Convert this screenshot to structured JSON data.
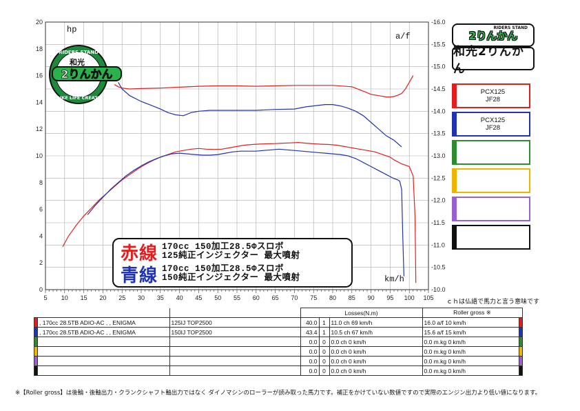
{
  "chart_data": {
    "type": "line",
    "x_axis": {
      "label": "km/h",
      "range": [
        5,
        105
      ],
      "ticks": [
        5,
        10,
        15,
        20,
        25,
        30,
        35,
        40,
        45,
        50,
        55,
        60,
        65,
        70,
        75,
        80,
        85,
        90,
        95,
        100,
        105
      ]
    },
    "y_left": {
      "label": "hp",
      "range": [
        0,
        20
      ],
      "ticks": [
        0,
        2,
        4,
        6,
        8,
        10,
        12,
        14,
        16,
        18,
        20
      ]
    },
    "y_right": {
      "label": "a/f",
      "range": [
        10.0,
        16.0
      ],
      "ticks": [
        "10.0",
        "10.5",
        "11.0",
        "11.5",
        "12.0",
        "12.5",
        "13.0",
        "13.5",
        "14.0",
        "14.5",
        "15.0",
        "15.5",
        "16.0"
      ]
    },
    "grid": true,
    "series": [
      {
        "name": "170cc 150加工28.5Φスロボ 125純正インジェクター 最大噴射",
        "color": "#e41e1e",
        "kind": "power",
        "x": [
          9.5,
          11,
          13,
          15,
          17,
          19,
          21,
          23,
          25,
          27,
          29,
          31,
          33,
          35,
          37,
          39,
          41,
          43,
          45,
          47,
          49,
          51,
          53,
          55,
          57,
          59,
          61,
          63,
          65,
          67,
          69,
          71,
          73,
          75,
          77,
          79,
          81,
          83,
          85,
          87,
          89,
          91,
          93,
          95,
          96,
          97,
          98,
          99,
          100,
          101,
          101.5,
          101.7
        ],
        "y": [
          3.2,
          4.0,
          4.8,
          5.5,
          6.1,
          6.7,
          7.2,
          7.7,
          8.2,
          8.6,
          9.0,
          9.35,
          9.65,
          9.9,
          10.1,
          10.3,
          10.4,
          10.5,
          10.55,
          10.5,
          10.48,
          10.5,
          10.6,
          10.7,
          10.8,
          10.85,
          10.88,
          10.9,
          10.92,
          10.95,
          10.97,
          11.0,
          10.95,
          10.9,
          10.87,
          10.85,
          10.8,
          10.7,
          10.6,
          10.5,
          10.4,
          10.3,
          10.1,
          9.9,
          9.7,
          9.55,
          9.4,
          9.3,
          9.2,
          8.5,
          5.5,
          0.5
        ]
      },
      {
        "name": "170cc 150加工28.5Φスロボ 150純正インジェクター 最大噴射",
        "color": "#1f33b3",
        "kind": "power",
        "x": [
          16,
          18,
          20,
          22,
          24,
          26,
          28,
          30,
          32,
          34,
          36,
          38,
          40,
          42,
          44,
          46,
          48,
          50,
          52,
          54,
          56,
          58,
          60,
          62,
          64,
          66,
          68,
          70,
          72,
          74,
          76,
          78,
          80,
          82,
          84,
          86,
          88,
          90,
          92,
          94,
          96,
          97,
          97.5,
          98,
          98.3,
          98.6
        ],
        "y": [
          5.6,
          6.3,
          6.9,
          7.5,
          8.0,
          8.5,
          8.9,
          9.25,
          9.55,
          9.8,
          10.0,
          10.15,
          10.2,
          10.15,
          10.1,
          10.05,
          10.05,
          10.1,
          10.2,
          10.3,
          10.35,
          10.35,
          10.35,
          10.4,
          10.45,
          10.5,
          10.45,
          10.4,
          10.35,
          10.3,
          10.25,
          10.2,
          10.15,
          10.1,
          10.0,
          9.8,
          9.5,
          9.2,
          8.9,
          8.6,
          8.3,
          8.2,
          8.1,
          7.5,
          4.0,
          1.0
        ]
      },
      {
        "name": "a/f red",
        "color": "#e41e1e",
        "kind": "af",
        "x": [
          23,
          24,
          25,
          27,
          30,
          35,
          40,
          45,
          50,
          55,
          60,
          65,
          70,
          75,
          80,
          85,
          88,
          90,
          92,
          94,
          95,
          96,
          97,
          98,
          99,
          100,
          101
        ],
        "y": [
          14.6,
          14.55,
          14.52,
          14.5,
          14.51,
          14.52,
          14.54,
          14.56,
          14.57,
          14.57,
          14.56,
          14.57,
          14.58,
          14.58,
          14.58,
          14.55,
          14.45,
          14.38,
          14.35,
          14.32,
          14.32,
          14.33,
          14.36,
          14.4,
          14.5,
          14.65,
          14.8
        ]
      },
      {
        "name": "a/f blue",
        "color": "#1f33b3",
        "kind": "af",
        "x": [
          24,
          25,
          27,
          30,
          33,
          35,
          37,
          39,
          41,
          43,
          45,
          48,
          50,
          55,
          60,
          65,
          70,
          73,
          75,
          78,
          80,
          82,
          84,
          86,
          88,
          90,
          92,
          94,
          96,
          98
        ],
        "y": [
          14.65,
          14.5,
          14.35,
          14.22,
          14.12,
          14.05,
          13.97,
          13.92,
          13.9,
          13.97,
          14.0,
          14.02,
          14.02,
          14.02,
          14.02,
          14.04,
          14.05,
          14.1,
          14.12,
          14.15,
          14.15,
          14.12,
          14.07,
          14.0,
          13.9,
          13.75,
          13.6,
          13.45,
          13.35,
          13.2
        ]
      }
    ]
  },
  "axis_labels": {
    "hp": "hp",
    "af": "a/f",
    "kmh": "km/h"
  },
  "legend": {
    "red_label": "赤線",
    "red_line1": "170cc 150加工28.5Φスロボ",
    "red_line2": "125純正インジェクター 最大噴射",
    "blue_label": "青線",
    "blue_line1": "170cc 150加工28.5Φスロボ",
    "blue_line2": "150純正インジェクター 最大噴射"
  },
  "shop": {
    "small": "RIDERS STAND",
    "logo": "2りんかん",
    "name": "和光2りんかん"
  },
  "decal": {
    "top": "RIDERS STAND",
    "mid": "和光",
    "main": "2りんかん",
    "bottom": "BIKE LIFE CREATE"
  },
  "series_boxes": [
    {
      "color": "#e41e1e",
      "line1": "PCX125",
      "line2": "JF28"
    },
    {
      "color": "#1f33b3",
      "line1": "PCX125",
      "line2": "JF28"
    },
    {
      "color": "#2e8b2e",
      "line1": "",
      "line2": ""
    },
    {
      "color": "#f0b400",
      "line1": "",
      "line2": ""
    },
    {
      "color": "#9a5fd0",
      "line1": "",
      "line2": ""
    },
    {
      "color": "#111111",
      "line1": "",
      "line2": ""
    }
  ],
  "right_note": "ｃｈは仏語で馬力と言う意味です",
  "table": {
    "header_losses": "Losses(N.m)",
    "header_roller": "Roller gross ※",
    "rows": [
      {
        "color": "#e41e1e",
        "desc1": ", 170cc 28.5TB ADIO-AC , , ENIGMA",
        "desc2": "125IJ TOP2500",
        "loss": "40.0",
        "n": "1",
        "power": "11.0 ch 69 km/h",
        "af": "16.0 a/f 10 km/h"
      },
      {
        "color": "#1f33b3",
        "desc1": ", 170cc 28.5TB ADIO-AC , , ENIGMA",
        "desc2": "150IJ TOP2500",
        "loss": "43.4",
        "n": "1",
        "power": "10.5 ch 67 km/h",
        "af": "15.6 a/f 15 km/h"
      },
      {
        "color": "#2e8b2e",
        "desc1": "",
        "desc2": "",
        "loss": "0.0",
        "n": "0",
        "power": "0.0 ch 0 km/h",
        "af": "0.0 m.kg 0 km/h"
      },
      {
        "color": "#f0b400",
        "desc1": "",
        "desc2": "",
        "loss": "0.0",
        "n": "0",
        "power": "0.0 ch 0 km/h",
        "af": "0.0 m.kg 0 km/h"
      },
      {
        "color": "#9a5fd0",
        "desc1": "",
        "desc2": "",
        "loss": "0.0",
        "n": "0",
        "power": "0.0 ch 0 km/h",
        "af": "0.0 m.kg 0 km/h"
      },
      {
        "color": "#111111",
        "desc1": "",
        "desc2": "",
        "loss": "0.0",
        "n": "0",
        "power": "0.0 ch 0 km/h",
        "af": "0.0 m.kg 0 km/h"
      }
    ]
  },
  "bottom_note": "※【Roller gross】は後輪・後軸出力・クランクシャフト軸出力ではなく ダイノマシンのローラーが読み取った馬力です。補正をかけていない数値ですので実際のエンジン出力より低い値になります。"
}
